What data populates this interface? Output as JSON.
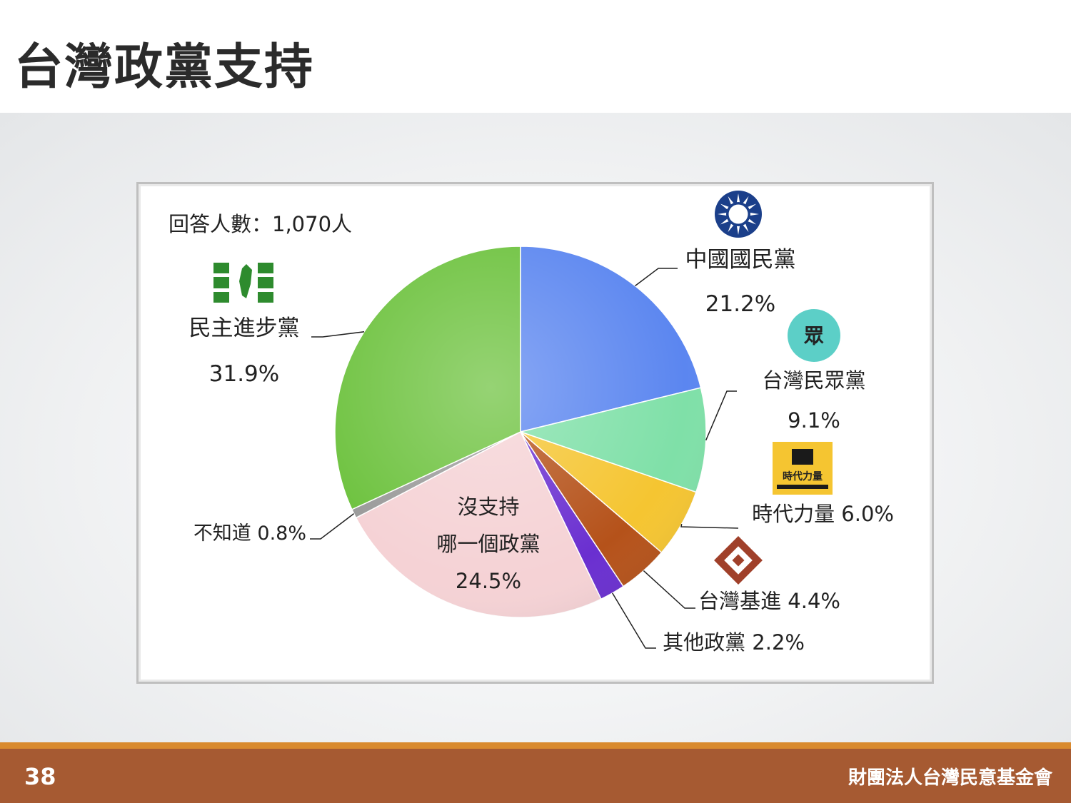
{
  "slide": {
    "title": "台灣政黨支持",
    "page_number": "38",
    "organization": "財團法人台灣民意基金會"
  },
  "chart_data": {
    "type": "pie",
    "respondents": "回答人數：1,070人",
    "slices": [
      {
        "key": "kmt",
        "lines": [
          "中國國民黨",
          "21.2%"
        ],
        "value": 21.2,
        "color": "#5b86f0",
        "icon": "kmt-emblem-icon"
      },
      {
        "key": "tpp",
        "lines": [
          "台灣民眾黨",
          "9.1%"
        ],
        "value": 9.1,
        "color": "#7fe0a8",
        "icon": "tpp-logo-icon",
        "logo_text": "眾"
      },
      {
        "key": "npp",
        "lines": [
          "時代力量 6.0%"
        ],
        "value": 6.0,
        "color": "#f5c531",
        "icon": "npp-logo-icon",
        "logo_text": "時代力量"
      },
      {
        "key": "tsp",
        "lines": [
          "台灣基進 4.4%"
        ],
        "value": 4.4,
        "color": "#b5521a",
        "icon": "tsp-logo-icon"
      },
      {
        "key": "other",
        "lines": [
          "其他政黨 2.2%"
        ],
        "value": 2.2,
        "color": "#6a2fd0",
        "icon": ""
      },
      {
        "key": "none",
        "lines": [
          "沒支持",
          "哪一個政黨",
          "24.5%"
        ],
        "value": 24.5,
        "color": "#f5d2d5",
        "icon": ""
      },
      {
        "key": "unknown",
        "lines": [
          "不知道 0.8%"
        ],
        "value": 0.8,
        "color": "#9a9a9a",
        "icon": ""
      },
      {
        "key": "dpp",
        "lines": [
          "民主進步黨",
          "31.9%"
        ],
        "value": 31.9,
        "color": "#6dc23e",
        "icon": "dpp-flag-icon"
      }
    ]
  }
}
